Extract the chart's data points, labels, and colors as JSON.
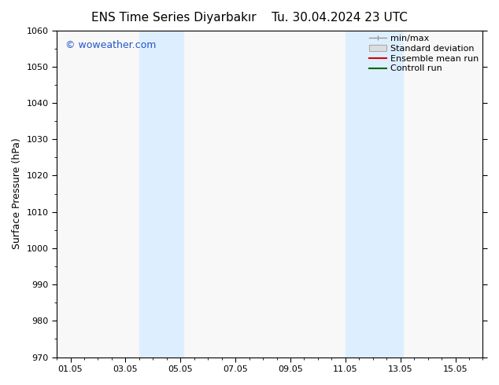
{
  "title_left": "ENS Time Series Diyarbakır",
  "title_right": "Tu. 30.04.2024 23 UTC",
  "ylabel": "Surface Pressure (hPa)",
  "ylim": [
    970,
    1060
  ],
  "yticks": [
    970,
    980,
    990,
    1000,
    1010,
    1020,
    1030,
    1040,
    1050,
    1060
  ],
  "xlim_start": 0.5,
  "xlim_end": 16.0,
  "xtick_positions": [
    1.0,
    3.0,
    5.0,
    7.0,
    9.0,
    11.0,
    13.0,
    15.0
  ],
  "xtick_labels": [
    "01.05",
    "03.05",
    "05.05",
    "07.05",
    "09.05",
    "11.05",
    "13.05",
    "15.05"
  ],
  "background_color": "#ffffff",
  "plot_bg_color": "#f8f8f8",
  "shaded_bands": [
    {
      "xmin": 3.5,
      "xmax": 5.1
    },
    {
      "xmin": 11.0,
      "xmax": 13.1
    }
  ],
  "shade_color": "#ddeeff",
  "watermark_text": "© woweather.com",
  "watermark_color": "#2255cc",
  "title_fontsize": 11,
  "axis_label_fontsize": 9,
  "tick_fontsize": 8,
  "legend_fontsize": 8,
  "watermark_fontsize": 9
}
